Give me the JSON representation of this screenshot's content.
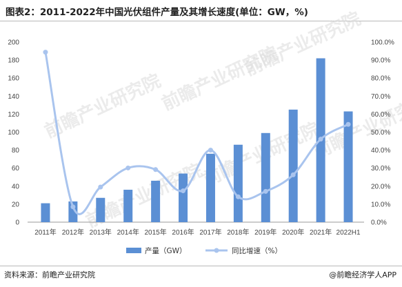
{
  "header": {
    "title": "图表2：2011-2022年中国光伏组件产量及其增长速度(单位：GW，%)"
  },
  "footer": {
    "source": "资料来源：前瞻产业研究院",
    "credit": "@前瞻经济学人APP"
  },
  "watermark": {
    "text": "前瞻产业研究院"
  },
  "colors": {
    "bar": "#5b8fd4",
    "line": "#a9c4ee"
  },
  "chart_data": {
    "type": "bar",
    "categories": [
      "2011年",
      "2012年",
      "2013年",
      "2014年",
      "2015年",
      "2016年",
      "2017年",
      "2018年",
      "2019年",
      "2020年",
      "2021年",
      "2022H1"
    ],
    "series": [
      {
        "name": "产量（GW）",
        "type": "bar",
        "axis": "left",
        "values": [
          21,
          23,
          27,
          36,
          46,
          54,
          76,
          86,
          99,
          125,
          182,
          123
        ]
      },
      {
        "name": "同比增速（%）",
        "type": "line",
        "axis": "right",
        "smooth": true,
        "values": [
          94.4,
          8.5,
          19.5,
          30.1,
          29.2,
          17.4,
          40.0,
          14.1,
          17.1,
          26.3,
          46.1,
          54.3
        ]
      }
    ],
    "y_left": {
      "min": 0,
      "max": 200,
      "ticks": [
        "0",
        "20",
        "40",
        "60",
        "80",
        "100",
        "120",
        "140",
        "160",
        "180",
        "200"
      ]
    },
    "y_right": {
      "min": 0,
      "max": 100,
      "ticks": [
        "0.0%",
        "10.0%",
        "20.0%",
        "30.0%",
        "40.0%",
        "50.0%",
        "60.0%",
        "70.0%",
        "80.0%",
        "90.0%",
        "100.0%"
      ]
    },
    "grid": false,
    "legend": "bottom-center"
  }
}
